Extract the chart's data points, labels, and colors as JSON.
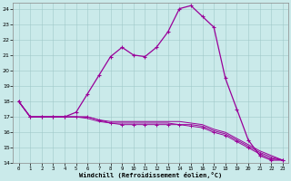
{
  "xlabel": "Windchill (Refroidissement éolien,°C)",
  "background_color": "#caeaea",
  "line_color": "#990099",
  "xlim": [
    -0.5,
    23.5
  ],
  "ylim": [
    14,
    24.4
  ],
  "yticks": [
    14,
    15,
    16,
    17,
    18,
    19,
    20,
    21,
    22,
    23,
    24
  ],
  "xticks": [
    0,
    1,
    2,
    3,
    4,
    5,
    6,
    7,
    8,
    9,
    10,
    11,
    12,
    13,
    14,
    15,
    16,
    17,
    18,
    19,
    20,
    21,
    22,
    23
  ],
  "line1_x": [
    0,
    1,
    2,
    3,
    4,
    5,
    6,
    7,
    8,
    9,
    10,
    11,
    12,
    13,
    14,
    15,
    16,
    17,
    18,
    19,
    20,
    21,
    22,
    23
  ],
  "line1_y": [
    18.0,
    17.0,
    17.0,
    17.0,
    17.0,
    17.3,
    18.5,
    19.7,
    20.9,
    21.5,
    21.0,
    20.9,
    21.5,
    22.5,
    24.0,
    24.2,
    23.5,
    22.8,
    19.5,
    17.5,
    15.5,
    14.5,
    14.2,
    14.2
  ],
  "line2_x": [
    0,
    1,
    2,
    3,
    4,
    5,
    6,
    7,
    8,
    9,
    10,
    11,
    12,
    13,
    14,
    15,
    16,
    17,
    18,
    19,
    20,
    21,
    22,
    23
  ],
  "line2_y": [
    18.0,
    17.0,
    17.0,
    17.0,
    17.0,
    17.0,
    17.0,
    16.8,
    16.6,
    16.5,
    16.5,
    16.5,
    16.5,
    16.5,
    16.5,
    16.4,
    16.3,
    16.0,
    15.8,
    15.4,
    15.0,
    14.6,
    14.3,
    14.2
  ],
  "line3_x": [
    0,
    1,
    2,
    3,
    4,
    5,
    6,
    7,
    8,
    9,
    10,
    11,
    12,
    13,
    14,
    15,
    16,
    17,
    18,
    19,
    20,
    21,
    22,
    23
  ],
  "line3_y": [
    18.0,
    17.0,
    17.0,
    17.0,
    17.0,
    17.0,
    16.9,
    16.7,
    16.6,
    16.6,
    16.6,
    16.6,
    16.6,
    16.6,
    16.5,
    16.5,
    16.4,
    16.1,
    15.9,
    15.5,
    15.1,
    14.7,
    14.4,
    14.2
  ],
  "line4_x": [
    0,
    1,
    2,
    3,
    4,
    5,
    6,
    7,
    8,
    9,
    10,
    11,
    12,
    13,
    14,
    15,
    16,
    17,
    18,
    19,
    20,
    21,
    22,
    23
  ],
  "line4_y": [
    18.0,
    17.0,
    17.0,
    17.0,
    17.0,
    17.0,
    17.0,
    16.8,
    16.7,
    16.7,
    16.7,
    16.7,
    16.7,
    16.7,
    16.7,
    16.6,
    16.5,
    16.2,
    16.0,
    15.6,
    15.2,
    14.8,
    14.5,
    14.2
  ]
}
